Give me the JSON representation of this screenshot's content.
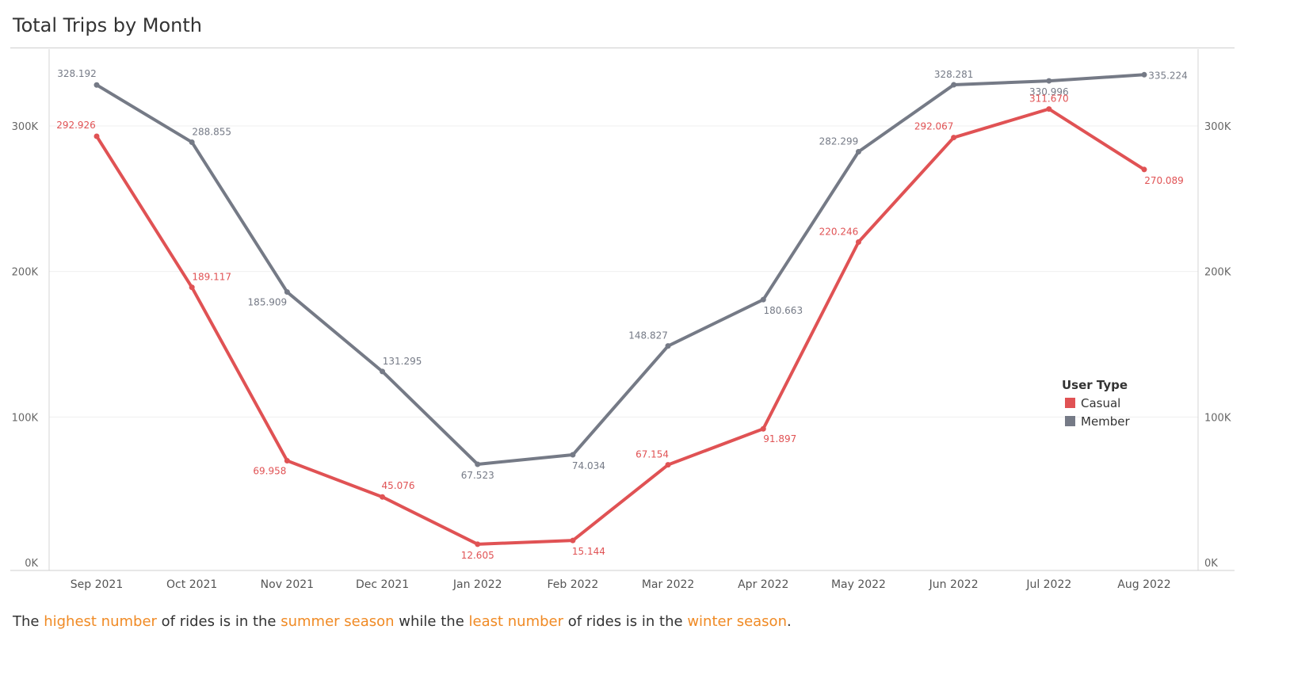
{
  "title": "Total Trips by Month",
  "legend": {
    "title": "User Type",
    "items": [
      {
        "label": "Casual",
        "color": "#e05254"
      },
      {
        "label": "Member",
        "color": "#757a86"
      }
    ]
  },
  "caption": {
    "p1": "The ",
    "h1": "highest number",
    "p2": " of rides is in the ",
    "h2": "summer season",
    "p3": " while the ",
    "h3": "least number",
    "p4": " of rides is in the ",
    "h4": "winter season",
    "p5": ".",
    "highlight_color": "#f08a24"
  },
  "chart_data": {
    "type": "line",
    "categories": [
      "Sep 2021",
      "Oct 2021",
      "Nov 2021",
      "Dec 2021",
      "Jan 2022",
      "Feb 2022",
      "Mar 2022",
      "Apr 2022",
      "May 2022",
      "Jun 2022",
      "Jul 2022",
      "Aug 2022"
    ],
    "series": [
      {
        "name": "Casual",
        "color": "#e05254",
        "values": [
          292926,
          189117,
          69958,
          45076,
          12605,
          15144,
          67154,
          91897,
          220246,
          292067,
          311670,
          270089
        ],
        "labels": [
          "292.926",
          "189.117",
          "69.958",
          "45.076",
          "12.605",
          "15.144",
          "67.154",
          "91.897",
          "220.246",
          "292.067",
          "311.670",
          "270.089"
        ]
      },
      {
        "name": "Member",
        "color": "#757a86",
        "values": [
          328192,
          288855,
          185909,
          131295,
          67523,
          74034,
          148827,
          180663,
          282299,
          328281,
          330996,
          335224
        ],
        "labels": [
          "328.192",
          "288.855",
          "185.909",
          "131.295",
          "67.523",
          "74.034",
          "148.827",
          "180.663",
          "282.299",
          "328.281",
          "330.996",
          "335.224"
        ]
      }
    ],
    "ylim": [
      0,
      350000
    ],
    "yticks": [
      0,
      100000,
      200000,
      300000
    ],
    "ytick_labels": [
      "0K",
      "100K",
      "200K",
      "300K"
    ],
    "y_axis_dual": true,
    "grid": "horizontal",
    "legend_position": "right"
  }
}
